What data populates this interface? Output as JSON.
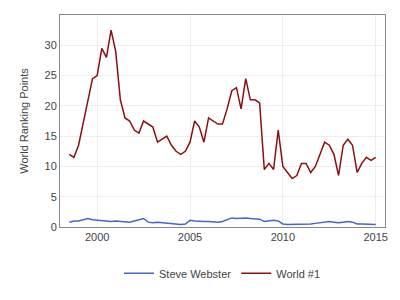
{
  "chart_data": {
    "type": "line",
    "ylabel": "World Ranking Points",
    "x": [
      1998.5,
      1998.75,
      1999.0,
      1999.25,
      1999.5,
      1999.75,
      2000.0,
      2000.25,
      2000.5,
      2000.75,
      2001.0,
      2001.25,
      2001.5,
      2001.75,
      2002.0,
      2002.25,
      2002.5,
      2002.75,
      2003.0,
      2003.25,
      2003.5,
      2003.75,
      2004.0,
      2004.25,
      2004.5,
      2004.75,
      2005.0,
      2005.25,
      2005.5,
      2005.75,
      2006.0,
      2006.25,
      2006.5,
      2006.75,
      2007.0,
      2007.25,
      2007.5,
      2007.75,
      2008.0,
      2008.25,
      2008.5,
      2008.75,
      2009.0,
      2009.25,
      2009.5,
      2009.75,
      2010.0,
      2010.25,
      2010.5,
      2010.75,
      2011.0,
      2011.25,
      2011.5,
      2011.75,
      2012.0,
      2012.25,
      2012.5,
      2012.75,
      2013.0,
      2013.25,
      2013.5,
      2013.75,
      2014.0,
      2014.25,
      2014.5,
      2014.75,
      2015.0
    ],
    "series": [
      {
        "name": "World #1",
        "color": "#8b1010",
        "values": [
          12.0,
          11.5,
          13.5,
          17.0,
          20.5,
          24.5,
          25.0,
          29.5,
          28.0,
          32.5,
          29.0,
          21.0,
          18.0,
          17.5,
          16.0,
          15.5,
          17.5,
          17.0,
          16.5,
          14.0,
          14.5,
          15.0,
          13.5,
          12.5,
          12.0,
          12.5,
          14.0,
          17.5,
          16.5,
          14.0,
          18.0,
          17.5,
          17.0,
          17.0,
          19.5,
          22.5,
          23.0,
          19.5,
          24.5,
          21.0,
          21.0,
          20.5,
          9.5,
          10.5,
          9.5,
          16.0,
          10.0,
          9.0,
          8.0,
          8.5,
          10.5,
          10.5,
          9.0,
          10.0,
          12.0,
          14.0,
          13.5,
          12.0,
          8.5,
          13.5,
          14.5,
          13.5,
          9.0,
          10.5,
          11.5,
          11.0,
          11.5
        ]
      },
      {
        "name": "Steve Webster",
        "color": "#4466cc",
        "values": [
          0.8,
          1.0,
          1.0,
          1.2,
          1.4,
          1.2,
          1.1,
          1.0,
          1.0,
          0.9,
          1.0,
          0.9,
          0.9,
          0.8,
          1.0,
          1.2,
          1.4,
          0.8,
          0.7,
          0.8,
          0.7,
          0.6,
          0.5,
          0.4,
          0.4,
          0.5,
          1.1,
          1.0,
          0.9,
          0.9,
          0.9,
          0.8,
          0.8,
          0.9,
          1.2,
          1.5,
          1.4,
          1.5,
          1.5,
          1.4,
          1.3,
          1.3,
          0.9,
          1.0,
          1.1,
          1.0,
          0.5,
          0.4,
          0.4,
          0.5,
          0.5,
          0.5,
          0.5,
          0.6,
          0.7,
          0.8,
          0.9,
          0.8,
          0.7,
          0.8,
          0.9,
          0.8,
          0.5,
          0.5,
          0.5,
          0.4,
          0.4
        ]
      }
    ],
    "xlim": [
      1998.0,
      2015.5
    ],
    "xticks": [
      2000,
      2005,
      2010,
      2015
    ],
    "ylim": [
      0,
      35
    ],
    "yticks": [
      0,
      5,
      10,
      15,
      20,
      25,
      30
    ],
    "grid": true,
    "legend": "bottom"
  }
}
